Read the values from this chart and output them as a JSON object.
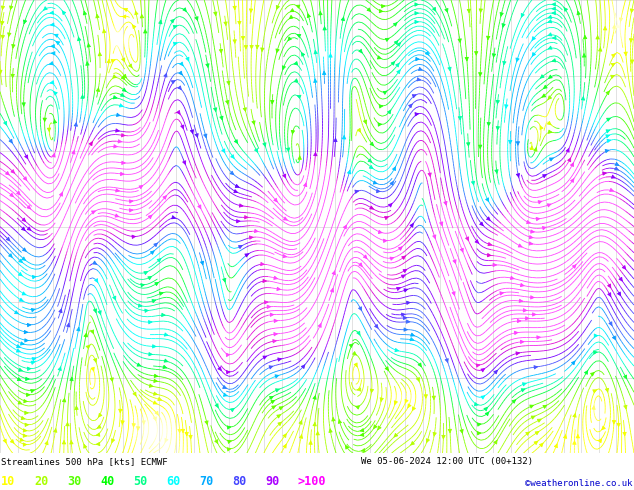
{
  "title_line1": "Streamlines 500 hPa [kts] ECMWF",
  "title_line2": "We 05-06-2024 12:00 UTC (00+132)",
  "credit": "©weatheronline.co.uk",
  "legend_values": [
    "10",
    "20",
    "30",
    "40",
    "50",
    "60",
    "70",
    "80",
    "90",
    ">100"
  ],
  "legend_colors": [
    "#ffff00",
    "#aaff00",
    "#55ff00",
    "#00ff00",
    "#00ff88",
    "#00ffff",
    "#00aaff",
    "#4444ff",
    "#aa00ff",
    "#ff00ff"
  ],
  "bg_color": "#ffffff",
  "title_color": "#000000",
  "credit_color": "#0000cc",
  "grid_color": "#aaaaaa",
  "figsize": [
    6.34,
    4.9
  ],
  "dpi": 100,
  "seed": 42
}
